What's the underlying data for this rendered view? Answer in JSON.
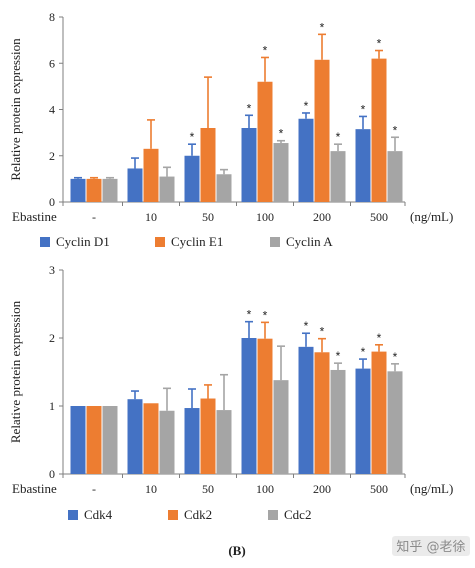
{
  "colors": {
    "series1": "#4472C4",
    "series2": "#ED7D31",
    "series3": "#A5A5A5",
    "axis": "#7f7f7f"
  },
  "chart_data": [
    {
      "type": "bar",
      "ylabel": "Relative protein expression",
      "ylim": [
        0,
        8
      ],
      "yticks": [
        "0",
        "2",
        "4",
        "6",
        "8"
      ],
      "xlabel_left": "Ebastine",
      "xlabel_unit": "(ng/mL)",
      "categories": [
        "-",
        "10",
        "50",
        "100",
        "200",
        "500"
      ],
      "series": [
        {
          "name": "Cyclin D1",
          "values": [
            1.0,
            1.45,
            2.0,
            3.2,
            3.6,
            3.15
          ],
          "err": [
            0.05,
            0.45,
            0.5,
            0.55,
            0.25,
            0.55
          ],
          "sig": [
            false,
            false,
            true,
            true,
            true,
            true
          ]
        },
        {
          "name": "Cyclin E1",
          "values": [
            1.0,
            2.3,
            3.2,
            5.2,
            6.15,
            6.2
          ],
          "err": [
            0.05,
            1.25,
            2.2,
            1.05,
            1.1,
            0.35
          ],
          "sig": [
            false,
            false,
            false,
            true,
            true,
            true
          ]
        },
        {
          "name": "Cyclin A",
          "values": [
            1.0,
            1.1,
            1.2,
            2.55,
            2.2,
            2.2
          ],
          "err": [
            0.05,
            0.4,
            0.2,
            0.1,
            0.3,
            0.6
          ],
          "sig": [
            false,
            false,
            false,
            true,
            true,
            true
          ]
        }
      ],
      "legend_position": "bottom",
      "grid": false
    },
    {
      "type": "bar",
      "ylabel": "Relative protein expression",
      "ylim": [
        0,
        3
      ],
      "yticks": [
        "0",
        "1",
        "2",
        "3"
      ],
      "xlabel_left": "Ebastine",
      "xlabel_unit": "(ng/mL)",
      "categories": [
        "-",
        "10",
        "50",
        "100",
        "200",
        "500"
      ],
      "series": [
        {
          "name": "Cdk4",
          "values": [
            1.0,
            1.1,
            0.97,
            2.0,
            1.87,
            1.55
          ],
          "err": [
            0.02,
            0.12,
            0.28,
            0.24,
            0.2,
            0.14
          ],
          "sig": [
            false,
            false,
            false,
            true,
            true,
            true
          ]
        },
        {
          "name": "Cdk2",
          "values": [
            1.0,
            1.04,
            1.11,
            1.99,
            1.79,
            1.8
          ],
          "err": [
            0.02,
            0.02,
            0.2,
            0.24,
            0.2,
            0.1
          ],
          "sig": [
            false,
            false,
            false,
            true,
            true,
            true
          ]
        },
        {
          "name": "Cdc2",
          "values": [
            1.0,
            0.93,
            0.94,
            1.38,
            1.53,
            1.51
          ],
          "err": [
            0.02,
            0.33,
            0.52,
            0.5,
            0.1,
            0.11
          ],
          "sig": [
            false,
            false,
            false,
            false,
            true,
            true
          ]
        }
      ],
      "legend_position": "bottom",
      "grid": false
    }
  ],
  "sig_marker": "*",
  "caption": "(B)",
  "watermark": "知乎 @老徐"
}
